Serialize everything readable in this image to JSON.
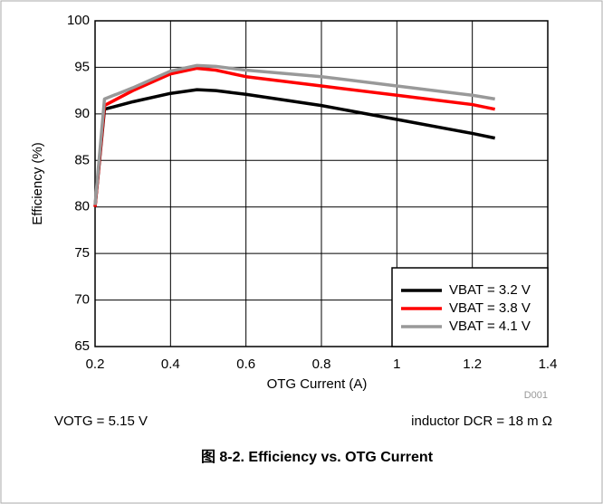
{
  "chart_data": {
    "type": "line",
    "title": "图 8-2. Efficiency vs. OTG Current",
    "x_label": "OTG Current (A)",
    "y_label": "Efficiency (%)",
    "annotations": [
      "VOTG = 5.15 V",
      "inductor DCR = 18 m Ω",
      "D001"
    ],
    "x": [
      0.2,
      0.225,
      0.3,
      0.4,
      0.47,
      0.52,
      0.6,
      0.8,
      1.0,
      1.2,
      1.26
    ],
    "series": [
      {
        "name": "VBAT = 3.2 V",
        "color": "#000000",
        "values": [
          80,
          90.5,
          91.3,
          92.2,
          92.6,
          92.5,
          92.1,
          90.9,
          89.4,
          87.9,
          87.4
        ]
      },
      {
        "name": "VBAT = 3.8 V",
        "color": "#ff0000",
        "values": [
          80,
          90.9,
          92.5,
          94.3,
          94.9,
          94.7,
          94.0,
          93.0,
          92.0,
          91.0,
          90.5
        ]
      },
      {
        "name": "VBAT = 4.1 V",
        "color": "#999999",
        "values": [
          80.2,
          91.6,
          92.8,
          94.6,
          95.2,
          95.1,
          94.7,
          94.0,
          93.0,
          92.0,
          91.6
        ]
      }
    ],
    "xlim": [
      0.2,
      1.4
    ],
    "xticks": [
      0.2,
      0.4,
      0.6,
      0.8,
      1,
      1.2,
      1.4
    ],
    "ylim": [
      65,
      100
    ],
    "yticks": [
      65,
      70,
      75,
      80,
      85,
      90,
      95,
      100
    ],
    "grid": true,
    "legend": "lower right"
  }
}
